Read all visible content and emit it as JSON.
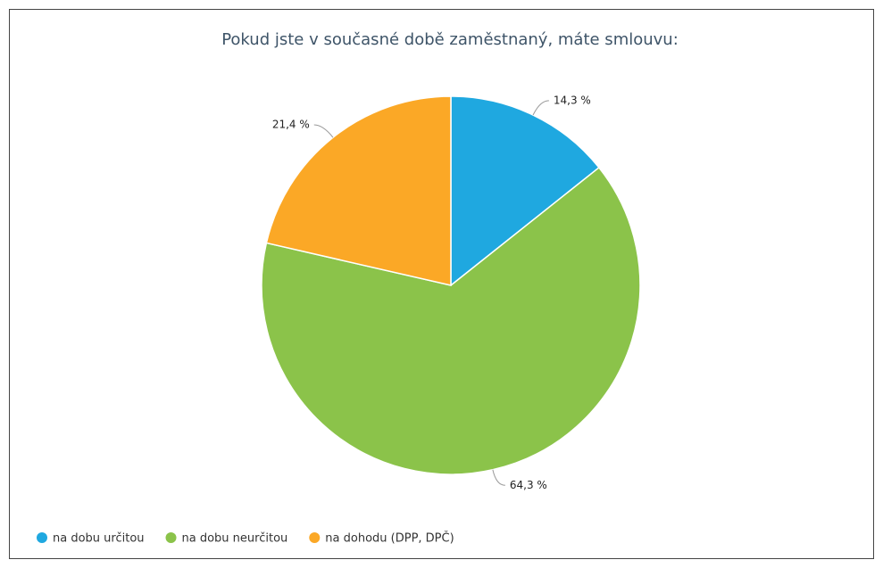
{
  "chart_data": {
    "type": "pie",
    "title": "Pokud jste v současné době zaměstnaný, máte smlouvu:",
    "categories": [
      "na dobu určitou",
      "na dobu neurčitou",
      "na dohodu (DPP, DPČ)"
    ],
    "values": [
      14.3,
      64.3,
      21.4
    ],
    "value_labels": [
      "14,3 %",
      "64,3 %",
      "21,4 %"
    ],
    "colors": [
      "#1fa8e0",
      "#8bc34a",
      "#fba826"
    ],
    "legend": "bottom"
  }
}
